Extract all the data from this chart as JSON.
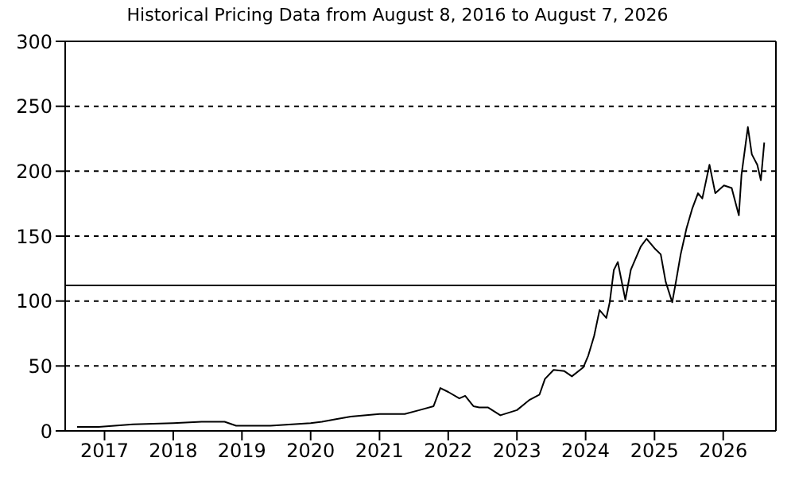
{
  "chart_data": {
    "type": "line",
    "title": "Historical Pricing Data from August 8, 2016 to August 7, 2026",
    "x": [
      "2016-08-08",
      "2016-12-01",
      "2017-06-01",
      "2018-01-01",
      "2018-06-01",
      "2018-10-01",
      "2018-12-01",
      "2019-06-01",
      "2020-01-01",
      "2020-03-01",
      "2020-05-15",
      "2020-08-01",
      "2021-01-01",
      "2021-05-15",
      "2021-08-01",
      "2021-10-15",
      "2021-11-20",
      "2022-01-01",
      "2022-03-01",
      "2022-04-01",
      "2022-05-15",
      "2022-06-15",
      "2022-08-01",
      "2022-10-05",
      "2023-01-01",
      "2023-03-10",
      "2023-05-01",
      "2023-05-30",
      "2023-07-15",
      "2023-09-10",
      "2023-10-20",
      "2023-12-20",
      "2024-01-15",
      "2024-02-15",
      "2024-03-15",
      "2024-04-20",
      "2024-05-08",
      "2024-05-30",
      "2024-06-20",
      "2024-07-30",
      "2024-08-28",
      "2024-10-20",
      "2024-11-20",
      "2025-01-05",
      "2025-02-03",
      "2025-03-01",
      "2025-04-05",
      "2025-04-25",
      "2025-05-20",
      "2025-06-20",
      "2025-07-20",
      "2025-08-20",
      "2025-09-12",
      "2025-10-20",
      "2025-11-20",
      "2026-01-05",
      "2026-02-15",
      "2026-03-25",
      "2026-04-08",
      "2026-05-12",
      "2026-06-02",
      "2026-07-01",
      "2026-07-20",
      "2026-08-07"
    ],
    "series": [
      {
        "color": "#000000",
        "values": [
          3,
          3,
          5,
          6,
          7,
          7,
          4,
          4,
          6,
          7,
          9,
          11,
          13,
          13,
          16,
          19,
          33,
          30,
          25,
          27,
          19,
          18,
          18,
          12,
          16,
          24,
          28,
          40,
          47,
          46,
          42,
          49,
          58,
          73,
          93,
          87,
          99,
          124,
          130,
          101,
          124,
          142,
          148,
          140,
          136,
          115,
          99,
          115,
          136,
          156,
          171,
          183,
          179,
          205,
          183,
          189,
          187,
          166,
          197,
          234,
          213,
          205,
          193,
          222
        ]
      }
    ],
    "xlim": [
      "2016-06-06",
      "2026-10-08"
    ],
    "xticks": [
      "2017",
      "2018",
      "2019",
      "2020",
      "2021",
      "2022",
      "2023",
      "2024",
      "2025",
      "2026"
    ],
    "ylim": [
      0,
      300
    ],
    "yticks": [
      0,
      50,
      100,
      150,
      200,
      250,
      300
    ],
    "grid": "y",
    "marker": "none",
    "line_style": "solid",
    "ref_lines": [
      {
        "axis": "y",
        "value": 112,
        "color": "#000000",
        "line_style": "solid"
      }
    ]
  }
}
